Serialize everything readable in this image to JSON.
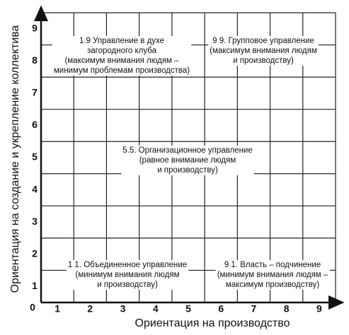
{
  "x_axis": {
    "label": "Ориентация на производство",
    "ticks": [
      1,
      2,
      3,
      4,
      5,
      6,
      7,
      8,
      9
    ]
  },
  "y_axis": {
    "label": "Ориентация на создание и укрепление коллектива",
    "ticks": [
      1,
      2,
      3,
      4,
      5,
      6,
      7,
      8,
      9
    ]
  },
  "origin": 0,
  "annotations": [
    {
      "lines": [
        "1.9  Управление в духе",
        "загородного клуба",
        "(максимум внимания людям –",
        "минимум проблемам производства)"
      ]
    },
    {
      "lines": [
        "9 9. Групповое управление",
        "(максимум внимания людям",
        "и производству)"
      ]
    },
    {
      "lines": [
        "5.5. Организационное управление",
        "(равное внимание людям",
        "и производству)"
      ]
    },
    {
      "lines": [
        "1 1. Объединенное управление",
        "(минимум внимания людям",
        "и производству)"
      ]
    },
    {
      "lines": [
        "9 1. Власть – подчинение",
        "(минимум внимания людям –",
        "максимум производству)"
      ]
    }
  ]
}
